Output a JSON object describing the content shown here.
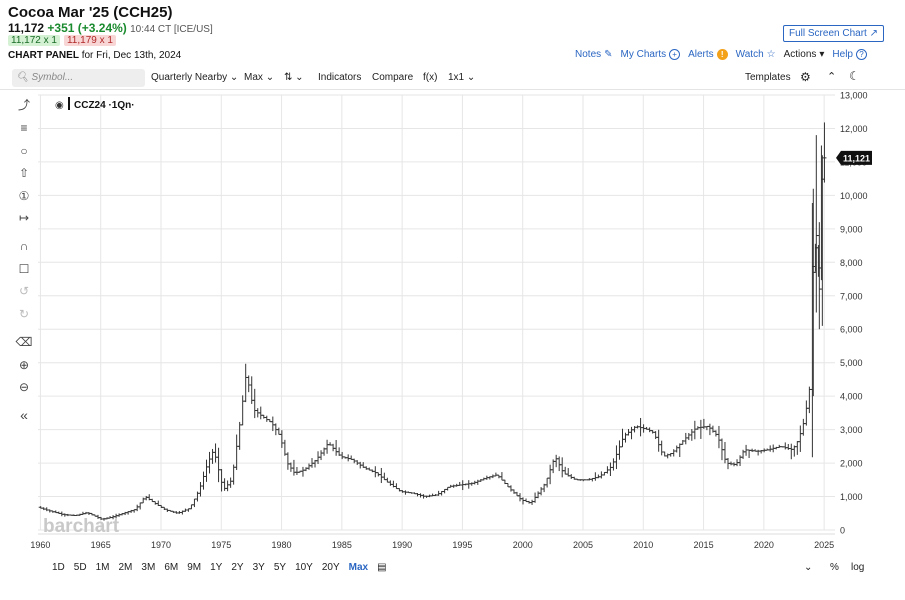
{
  "header": {
    "title": "Cocoa Mar '25 (CCH25)",
    "last": "11,172",
    "change": "+351 (+3.24%)",
    "time": "10:44 CT [ICE/US]",
    "bid": "11,172 x 1",
    "ask": "11,179 x 1",
    "panel_label": "CHART PANEL",
    "panel_date": "for Fri, Dec 13th, 2024",
    "fullscreen_label": "Full Screen Chart"
  },
  "nav": {
    "notes": "Notes",
    "my_charts": "My Charts",
    "alerts": "Alerts",
    "watch": "Watch",
    "actions": "Actions",
    "help": "Help"
  },
  "toolbar": {
    "search_placeholder": "Symbol...",
    "aggregation": "Quarterly Nearby",
    "range": "Max",
    "indicators": "Indicators",
    "compare": "Compare",
    "fx": "f(x)",
    "layout": "1x1",
    "templates": "Templates"
  },
  "sidebar_icons": [
    "line-tool-icon",
    "fib-tool-icon",
    "shape-tool-icon",
    "arrow-tool-icon",
    "annotation-tool-icon",
    "measure-tool-icon",
    "magnet-icon",
    "lock-icon",
    "undo-icon",
    "redo-icon",
    "trash-icon",
    "zoom-in-icon",
    "zoom-out-icon",
    "collapse-icon"
  ],
  "periods": [
    "1D",
    "5D",
    "1M",
    "2M",
    "3M",
    "6M",
    "9M",
    "1Y",
    "2Y",
    "3Y",
    "5Y",
    "10Y",
    "20Y",
    "Max"
  ],
  "active_period": "Max",
  "bottom_right": {
    "pct": "%",
    "log": "log"
  },
  "colors": {
    "accent": "#2a66c2",
    "bar": "#333333",
    "price_tag": "#111111",
    "grid": "#e6e6e6",
    "up": "#1a8a2e"
  },
  "chart_data": {
    "type": "ohlc",
    "legend": "CCZ24 ·1Qn·",
    "watermark": "barchart",
    "last_price_label": "11,121",
    "last_price": 11121,
    "ylim": [
      0,
      13000
    ],
    "yticks": [
      0,
      1000,
      2000,
      3000,
      4000,
      5000,
      6000,
      7000,
      8000,
      9000,
      10000,
      11000,
      12000,
      13000
    ],
    "ytick_labels": [
      "0",
      "1,000",
      "2,000",
      "3,000",
      "4,000",
      "5,000",
      "6,000",
      "7,000",
      "8,000",
      "9,000",
      "10,000",
      "11,000",
      "12,000",
      "13,000"
    ],
    "xlim": [
      1959.8,
      2025.9
    ],
    "xticks": [
      1960,
      1965,
      1970,
      1975,
      1980,
      1985,
      1990,
      1995,
      2000,
      2005,
      2010,
      2015,
      2020,
      2025
    ],
    "xtick_labels": [
      "1960",
      "1965",
      "1970",
      "1975",
      "1980",
      "1985",
      "1990",
      "1995",
      "2000",
      "2005",
      "2010",
      "2015",
      "2020",
      "2025"
    ],
    "anchors": [
      [
        1959.9,
        680
      ],
      [
        1961.0,
        560
      ],
      [
        1962.0,
        460
      ],
      [
        1963.0,
        430
      ],
      [
        1964.0,
        520
      ],
      [
        1965.2,
        320
      ],
      [
        1966.0,
        380
      ],
      [
        1967.0,
        500
      ],
      [
        1968.0,
        620
      ],
      [
        1968.8,
        1000
      ],
      [
        1969.6,
        800
      ],
      [
        1970.5,
        600
      ],
      [
        1971.5,
        500
      ],
      [
        1972.5,
        650
      ],
      [
        1973.3,
        1200
      ],
      [
        1974.0,
        2000
      ],
      [
        1974.5,
        2400
      ],
      [
        1975.3,
        1200
      ],
      [
        1976.0,
        1500
      ],
      [
        1976.6,
        3000
      ],
      [
        1977.2,
        4700
      ],
      [
        1977.8,
        3600
      ],
      [
        1978.5,
        3400
      ],
      [
        1979.3,
        3200
      ],
      [
        1980.0,
        2800
      ],
      [
        1980.6,
        2000
      ],
      [
        1981.2,
        1700
      ],
      [
        1982.0,
        1800
      ],
      [
        1983.0,
        2100
      ],
      [
        1984.0,
        2600
      ],
      [
        1985.0,
        2200
      ],
      [
        1986.0,
        2100
      ],
      [
        1987.0,
        1850
      ],
      [
        1988.0,
        1700
      ],
      [
        1989.0,
        1400
      ],
      [
        1990.0,
        1150
      ],
      [
        1991.0,
        1100
      ],
      [
        1992.0,
        1000
      ],
      [
        1993.0,
        1050
      ],
      [
        1994.0,
        1300
      ],
      [
        1995.0,
        1350
      ],
      [
        1996.0,
        1400
      ],
      [
        1997.0,
        1550
      ],
      [
        1998.0,
        1650
      ],
      [
        1999.0,
        1250
      ],
      [
        2000.0,
        900
      ],
      [
        2000.8,
        800
      ],
      [
        2002.0,
        1400
      ],
      [
        2002.8,
        2200
      ],
      [
        2003.5,
        1700
      ],
      [
        2004.5,
        1500
      ],
      [
        2005.5,
        1500
      ],
      [
        2006.5,
        1600
      ],
      [
        2007.5,
        1900
      ],
      [
        2008.5,
        2800
      ],
      [
        2009.5,
        3100
      ],
      [
        2010.5,
        3000
      ],
      [
        2011.0,
        2900
      ],
      [
        2011.8,
        2200
      ],
      [
        2012.5,
        2300
      ],
      [
        2013.5,
        2700
      ],
      [
        2014.5,
        3050
      ],
      [
        2015.5,
        3100
      ],
      [
        2016.3,
        2800
      ],
      [
        2017.0,
        2000
      ],
      [
        2017.8,
        1950
      ],
      [
        2018.5,
        2400
      ],
      [
        2019.5,
        2350
      ],
      [
        2020.5,
        2400
      ],
      [
        2021.5,
        2500
      ],
      [
        2022.5,
        2400
      ],
      [
        2023.0,
        2700
      ],
      [
        2023.5,
        3300
      ],
      [
        2023.9,
        4200
      ],
      [
        2024.1,
        7500
      ],
      [
        2024.3,
        9000
      ],
      [
        2024.6,
        7300
      ],
      [
        2024.96,
        11121
      ]
    ]
  }
}
